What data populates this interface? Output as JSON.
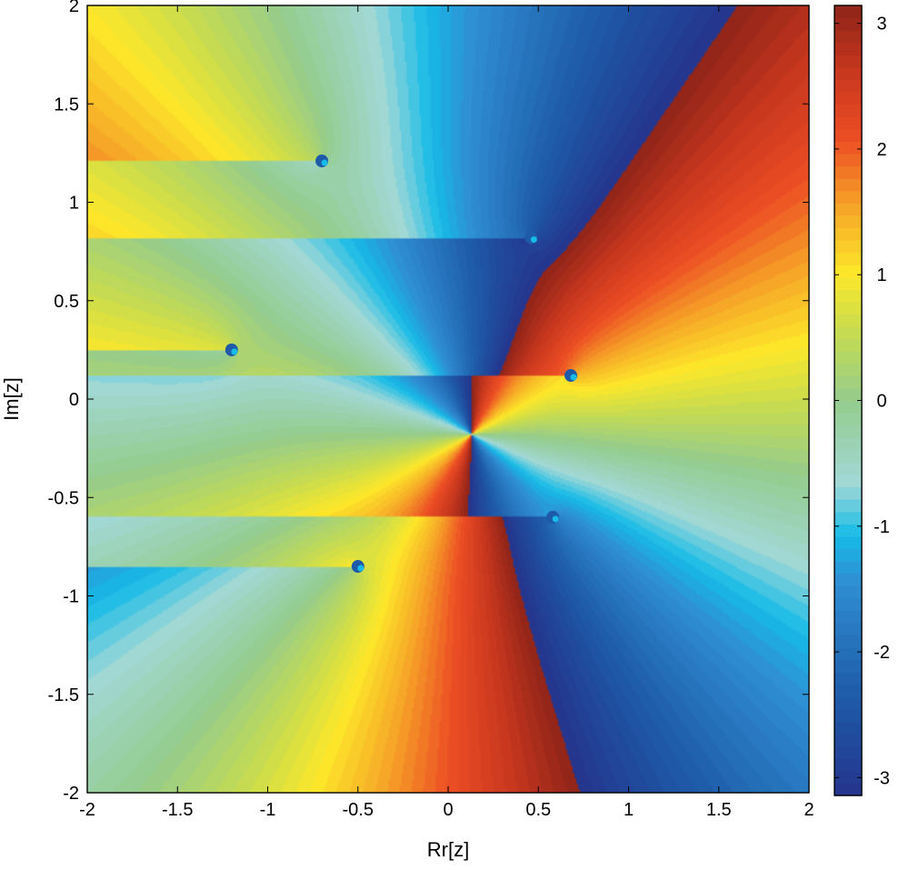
{
  "chart_data": {
    "type": "heatmap",
    "subtype": "phase-portrait",
    "xlabel": "Rr[z]",
    "ylabel": "Im[z]",
    "xlim": [
      -2,
      2
    ],
    "ylim": [
      -2,
      2
    ],
    "x_ticks": [
      -2,
      -1.5,
      -1,
      -0.5,
      0,
      0.5,
      1,
      1.5,
      2
    ],
    "y_ticks": [
      -2,
      -1.5,
      -1,
      -0.5,
      0,
      0.5,
      1,
      1.5,
      2
    ],
    "x_tick_labels": [
      "-2",
      "-1.5",
      "-1",
      "-0.5",
      "0",
      "0.5",
      "1",
      "1.5",
      "2"
    ],
    "y_tick_labels": [
      "-2",
      "-1.5",
      "-1",
      "-0.5",
      "0",
      "0.5",
      "1",
      "1.5",
      "2"
    ],
    "grid": false,
    "colorbar": {
      "position": "right",
      "range": [
        -3.14159,
        3.14159
      ],
      "ticks": [
        -3,
        -2,
        -1,
        0,
        1,
        2,
        3
      ],
      "tick_labels": [
        "-3",
        "-2",
        "-1",
        "0",
        "1",
        "2",
        "3"
      ],
      "levels": 64,
      "colormap": "jet"
    },
    "center": {
      "x": 0.13,
      "y": -0.18
    },
    "zeros": [
      {
        "x": -0.7,
        "y": 1.21
      },
      {
        "x": 0.46,
        "y": 0.82
      },
      {
        "x": -1.2,
        "y": 0.25
      },
      {
        "x": 0.68,
        "y": 0.12
      },
      {
        "x": 0.58,
        "y": -0.6
      },
      {
        "x": -0.5,
        "y": -0.85
      }
    ],
    "colors": {
      "dark_blue": "#24348c",
      "blue": "#1e5aa8",
      "cyan": "#16bbe8",
      "light_teal": "#a2d8d6",
      "green": "#94cc8c",
      "yellow": "#fde82a",
      "orange": "#f6a527",
      "red_orange": "#ed4e24",
      "dark_red": "#8e2418"
    }
  }
}
